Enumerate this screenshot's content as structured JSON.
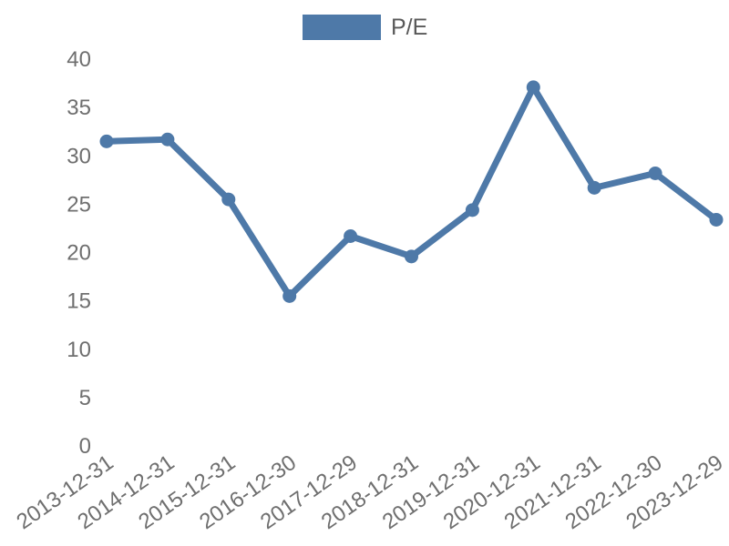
{
  "legend": {
    "label": "P/E"
  },
  "colors": {
    "accent": "#4e79a8",
    "tick_text": "#6f6f6f",
    "legend_text": "#595959",
    "background": "#ffffff"
  },
  "chart_data": {
    "type": "line",
    "title": "",
    "xlabel": "",
    "ylabel": "",
    "categories": [
      "2013-12-31",
      "2014-12-31",
      "2015-12-31",
      "2016-12-30",
      "2017-12-29",
      "2018-12-31",
      "2019-12-31",
      "2020-12-31",
      "2021-12-31",
      "2022-12-30",
      "2023-12-29"
    ],
    "series": [
      {
        "name": "P/E",
        "color": "#4e79a8",
        "values": [
          31.4,
          31.6,
          25.4,
          15.4,
          21.6,
          19.5,
          24.3,
          37.0,
          26.6,
          28.1,
          23.3
        ]
      }
    ],
    "ylim": [
      0,
      40
    ],
    "y_ticks": [
      0,
      5,
      10,
      15,
      20,
      25,
      30,
      35,
      40
    ],
    "grid": false,
    "axis_lines": false,
    "legend_position": "top-center",
    "x_tick_rotation": 35,
    "marker": "circle"
  }
}
